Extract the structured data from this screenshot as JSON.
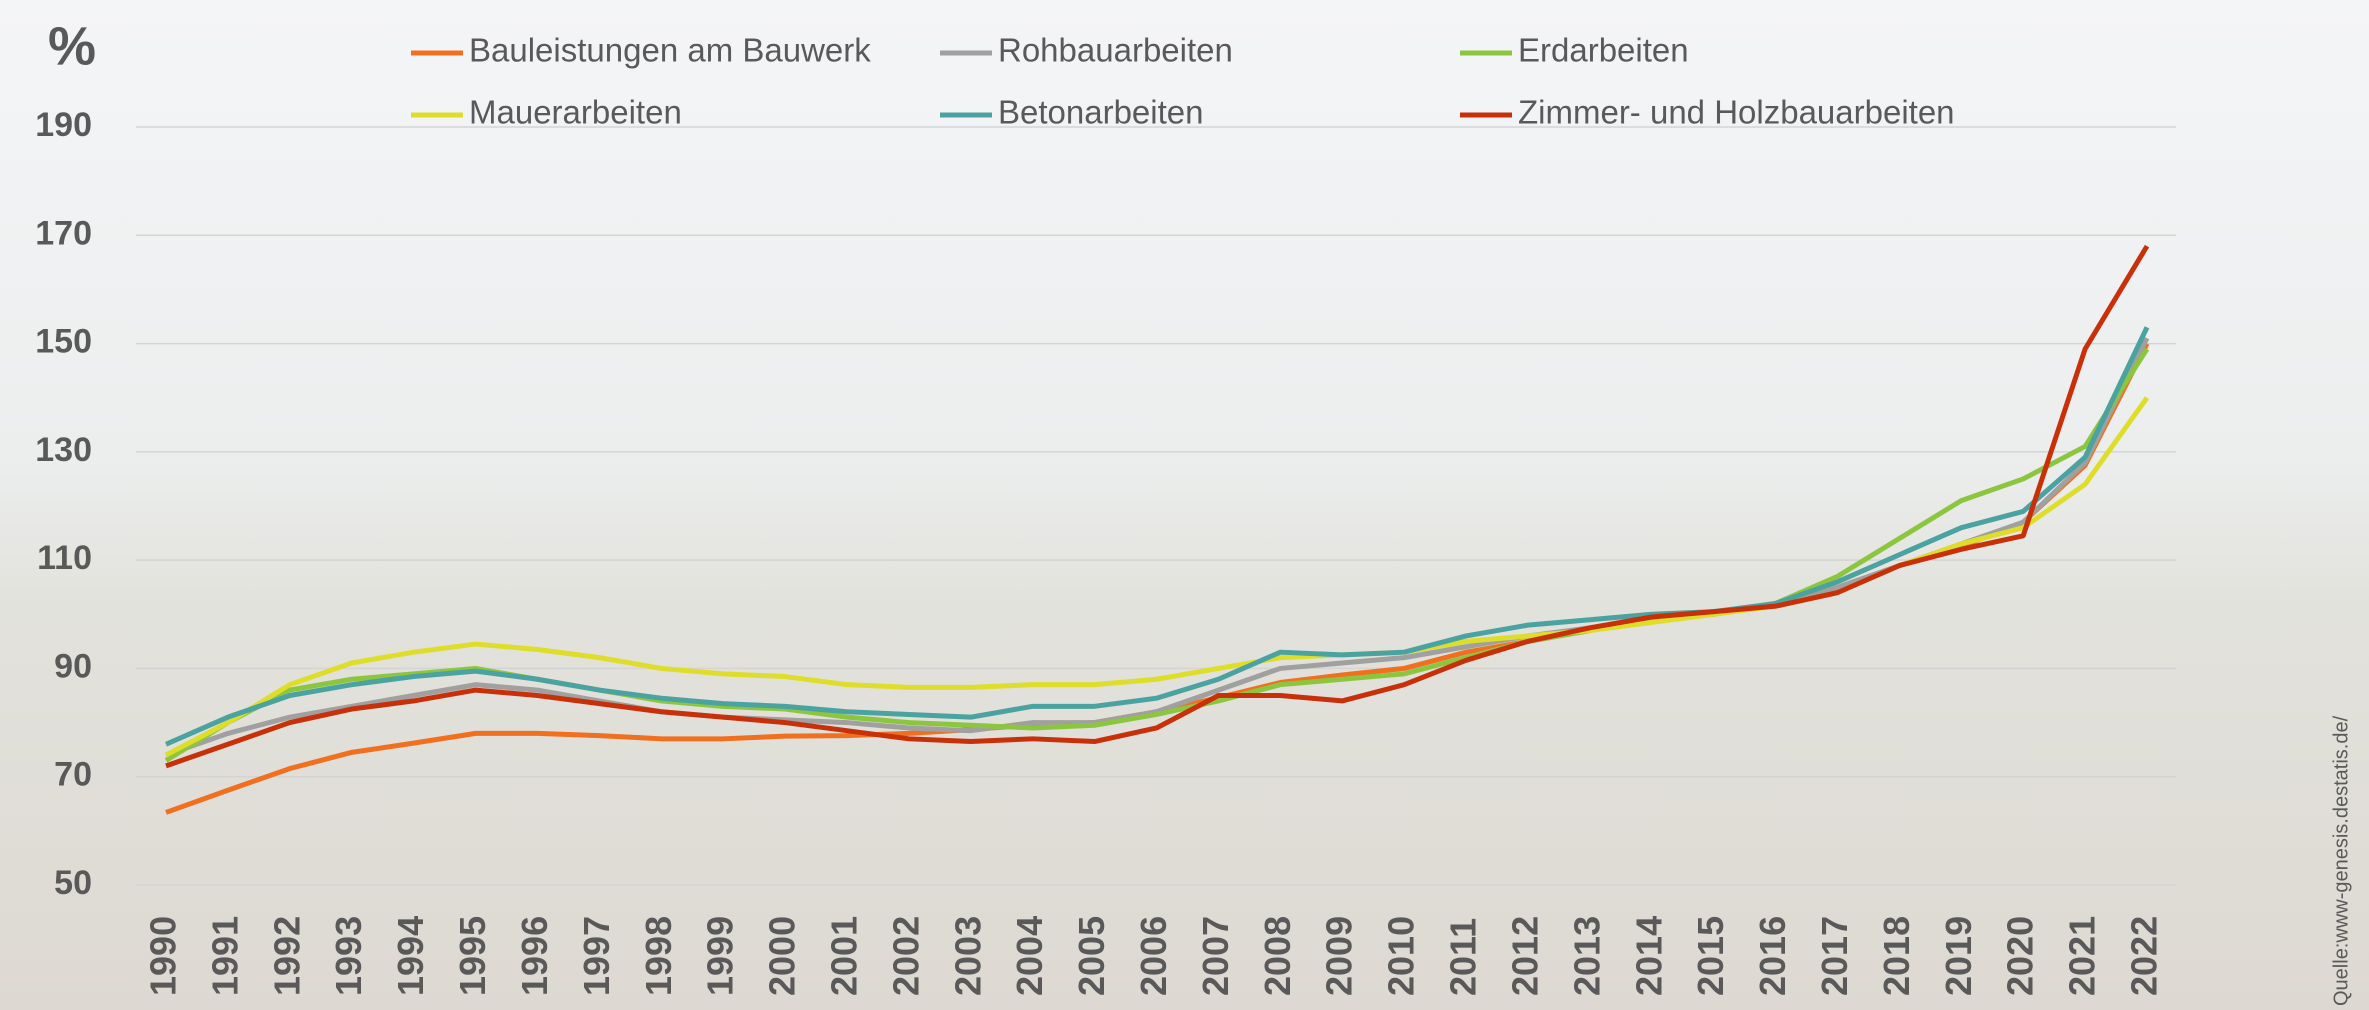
{
  "chart_data": {
    "type": "line",
    "y_unit": "%",
    "source": "Quelle:www-genesis.destatis.de/",
    "categories": [
      "1990",
      "1991",
      "1992",
      "1993",
      "1994",
      "1995",
      "1996",
      "1997",
      "1998",
      "1999",
      "2000",
      "2001",
      "2002",
      "2003",
      "2004",
      "2005",
      "2006",
      "2007",
      "2008",
      "2009",
      "2010",
      "2011",
      "2012",
      "2013",
      "2014",
      "2015",
      "2016",
      "2017",
      "2018",
      "2019",
      "2020",
      "2021",
      "2022"
    ],
    "ylim": [
      50,
      190
    ],
    "yticks": [
      50,
      70,
      90,
      110,
      130,
      150,
      170,
      190
    ],
    "grid": true,
    "series": [
      {
        "name": "Bauleistungen am Bauwerk",
        "color": "#f07020",
        "values": [
          63.4,
          67.5,
          71.5,
          74.5,
          76.2,
          78,
          78,
          77.6,
          77,
          77,
          77.5,
          77.6,
          78,
          78.7,
          79.6,
          80,
          82,
          84.6,
          87.4,
          88.8,
          90,
          93,
          95,
          97,
          99,
          100,
          102,
          104.7,
          109,
          112.5,
          117,
          127.5,
          150
        ]
      },
      {
        "name": "Rohbauarbeiten",
        "color": "#a0a0a0",
        "values": [
          74,
          78,
          81,
          83,
          85,
          87,
          86,
          84,
          82,
          81,
          80.5,
          80,
          79,
          78.5,
          80,
          80,
          82,
          86,
          90,
          91,
          92,
          94,
          96,
          97.5,
          99,
          100,
          102,
          105,
          109,
          113,
          117,
          128,
          151
        ]
      },
      {
        "name": "Erdarbeiten",
        "color": "#8cc63f",
        "values": [
          73,
          80,
          86,
          88,
          89,
          90,
          88,
          86,
          84,
          83,
          82.5,
          81,
          80,
          79.5,
          79,
          79.5,
          81.5,
          84,
          87,
          88,
          89,
          92,
          95,
          97,
          99,
          100,
          102,
          107,
          114,
          121,
          125,
          131,
          149
        ]
      },
      {
        "name": "Mauerarbeiten",
        "color": "#dede2a",
        "values": [
          74,
          80,
          87,
          91,
          93,
          94.5,
          93.5,
          92,
          90,
          89,
          88.5,
          87,
          86.5,
          86.5,
          87,
          87,
          88,
          90,
          92,
          92.5,
          93,
          95,
          96,
          97,
          98.5,
          100,
          101.5,
          104,
          109,
          113,
          116,
          124,
          140
        ]
      },
      {
        "name": "Betonarbeiten",
        "color": "#4aa3a0",
        "values": [
          76,
          81,
          85,
          87,
          88.5,
          89.5,
          88,
          86,
          84.5,
          83.5,
          83,
          82,
          81.5,
          81,
          83,
          83,
          84.5,
          88,
          93,
          92.5,
          93,
          96,
          98,
          99,
          100,
          100.5,
          102,
          106,
          111,
          116,
          119,
          129,
          153
        ]
      },
      {
        "name": "Zimmer- und Holzbauarbeiten",
        "color": "#c8300a",
        "values": [
          72,
          76,
          80,
          82.5,
          84,
          86,
          85,
          83.5,
          82,
          81,
          80,
          78.5,
          77,
          76.5,
          77,
          76.5,
          79,
          85,
          85,
          84,
          87,
          91.5,
          95,
          97.5,
          99.5,
          100.5,
          101.5,
          104,
          109,
          112,
          114.5,
          149,
          168
        ]
      }
    ]
  }
}
